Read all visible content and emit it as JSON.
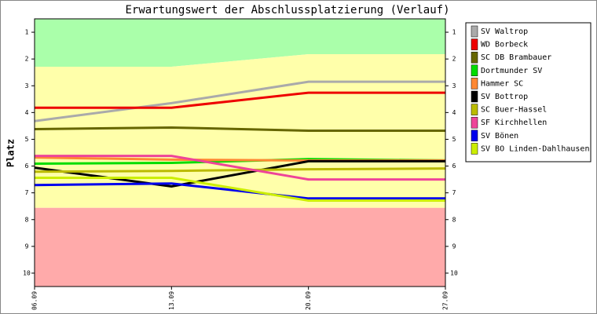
{
  "chart_data": {
    "type": "line",
    "title": "Erwartungswert der Abschlussplatzierung (Verlauf)",
    "y_label": "Platz",
    "categories": [
      "06.09",
      "13.09",
      "20.09",
      "27.09"
    ],
    "ylim": [
      10.5,
      0.5
    ],
    "yticks": [
      1,
      2,
      3,
      4,
      5,
      6,
      7,
      8,
      9,
      10
    ],
    "zone_colors": [
      "#aaffaa",
      "#ffffaa",
      "#ffaaaa"
    ],
    "zone_boundaries": [
      [
        2.29,
        2.29,
        1.82,
        1.82
      ],
      [
        7.56,
        7.56,
        7.56,
        7.56
      ]
    ],
    "series": [
      {
        "name": "SV Waltrop",
        "color": "#aaaaaa",
        "values": [
          4.32,
          3.65,
          2.85,
          2.85
        ]
      },
      {
        "name": "WD Borbeck",
        "color": "#ee0000",
        "values": [
          3.82,
          3.82,
          3.26,
          3.26
        ]
      },
      {
        "name": "SC DB Brambauer",
        "color": "#666600",
        "values": [
          4.62,
          4.56,
          4.68,
          4.68
        ]
      },
      {
        "name": "Dortmunder SV",
        "color": "#00dd00",
        "values": [
          5.91,
          5.88,
          5.74,
          5.79
        ]
      },
      {
        "name": "Hammer SC",
        "color": "#ff8833",
        "values": [
          5.68,
          5.76,
          5.79,
          5.79
        ]
      },
      {
        "name": "SV Bottrop",
        "color": "#000000",
        "values": [
          6.06,
          6.76,
          5.82,
          5.82
        ]
      },
      {
        "name": "SC Buer-Hassel",
        "color": "#bbbb00",
        "values": [
          6.21,
          6.18,
          6.12,
          6.09
        ]
      },
      {
        "name": "SF Kirchhellen",
        "color": "#ee4499",
        "values": [
          5.62,
          5.62,
          6.5,
          6.5
        ]
      },
      {
        "name": "SV Bönen",
        "color": "#0000ee",
        "values": [
          6.71,
          6.65,
          7.21,
          7.21
        ]
      },
      {
        "name": "SV BO Linden-Dahlhausen",
        "color": "#ccee00",
        "values": [
          6.44,
          6.44,
          7.29,
          7.29
        ]
      }
    ]
  }
}
